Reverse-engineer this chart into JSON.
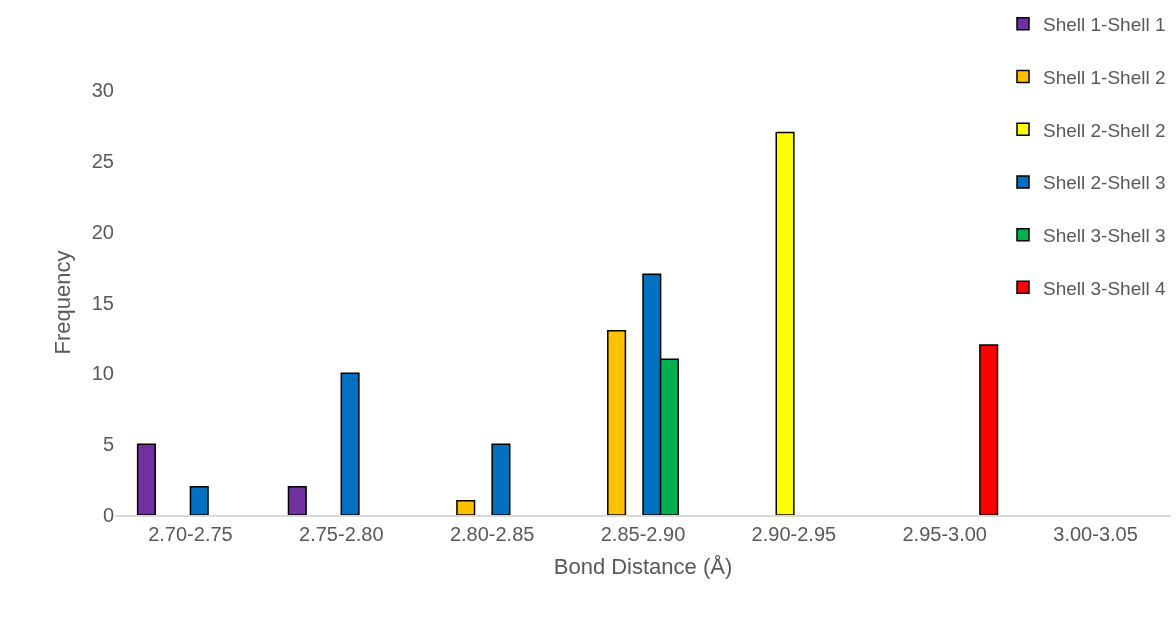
{
  "chart_data": {
    "type": "bar",
    "xlabel": "Bond Distance (Å)",
    "ylabel": "Frequency",
    "categories": [
      "2.70-2.75",
      "2.75-2.80",
      "2.80-2.85",
      "2.85-2.90",
      "2.90-2.95",
      "2.95-3.00",
      "3.00-3.05"
    ],
    "series": [
      {
        "name": "Shell 1-Shell 1",
        "color": "#7030a0",
        "values": [
          5,
          2,
          null,
          null,
          null,
          null,
          null
        ]
      },
      {
        "name": "Shell 1-Shell 2",
        "color": "#ffc000",
        "values": [
          null,
          null,
          1,
          13,
          null,
          null,
          null
        ]
      },
      {
        "name": "Shell 2-Shell 2",
        "color": "#ffff00",
        "values": [
          null,
          null,
          null,
          null,
          27,
          null,
          null
        ]
      },
      {
        "name": "Shell 2-Shell 3",
        "color": "#0070c0",
        "values": [
          2,
          10,
          5,
          17,
          null,
          null,
          null
        ]
      },
      {
        "name": "Shell 3-Shell 3",
        "color": "#00b050",
        "values": [
          null,
          null,
          null,
          11,
          null,
          null,
          null
        ]
      },
      {
        "name": "Shell 3-Shell 4",
        "color": "#ff0000",
        "values": [
          null,
          null,
          null,
          null,
          null,
          12,
          null
        ]
      }
    ],
    "ylim": [
      0,
      30
    ],
    "yticks": [
      0,
      5,
      10,
      15,
      20,
      25,
      30
    ],
    "grid": false,
    "legend": "top right"
  }
}
